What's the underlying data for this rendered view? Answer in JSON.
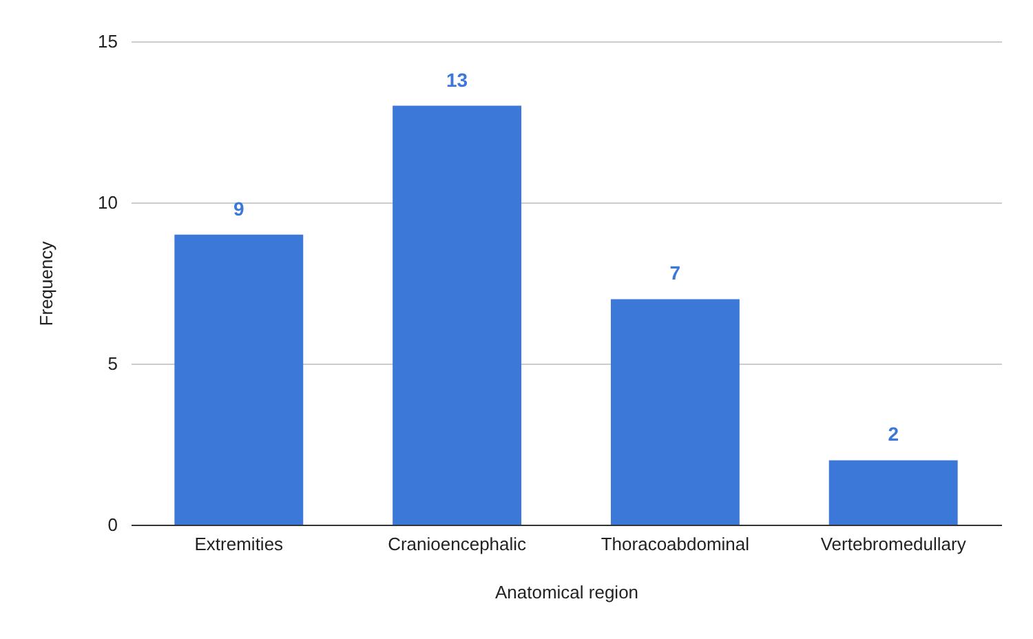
{
  "chart_data": {
    "type": "bar",
    "xlabel": "Anatomical region",
    "ylabel": "Frequency",
    "categories": [
      "Extremities",
      "Cranioencephalic",
      "Thoracoabdominal",
      "Vertebromedullary"
    ],
    "values": [
      9,
      13,
      7,
      2
    ],
    "color": "#3c78d8",
    "ylim": [
      0,
      15
    ],
    "yticks": [
      0,
      5,
      10,
      15
    ],
    "grid": "y",
    "data_labels": true
  }
}
